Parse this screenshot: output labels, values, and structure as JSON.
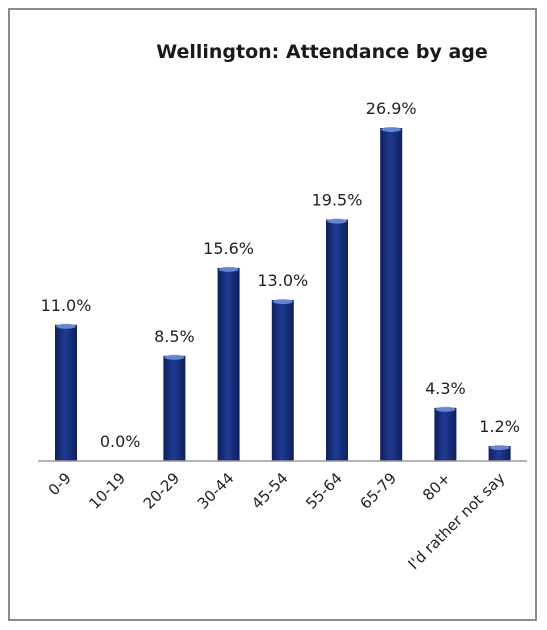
{
  "chart_data": {
    "type": "bar",
    "title": "Wellington: Attendance by age",
    "xlabel": "",
    "ylabel": "",
    "categories": [
      "0-9",
      "10-19",
      "20-29",
      "30-44",
      "45-54",
      "55-64",
      "65-79",
      "80+",
      "I'd rather not say"
    ],
    "values": [
      11.0,
      0.0,
      8.5,
      15.6,
      13.0,
      19.5,
      26.9,
      4.3,
      1.2
    ],
    "data_labels": [
      "11.0%",
      "0.0%",
      "8.5%",
      "15.6%",
      "13.0%",
      "19.5%",
      "26.9%",
      "4.3%",
      "1.2%"
    ],
    "ylim": [
      0,
      26.9
    ],
    "grid": false,
    "legend": "none",
    "bar_color": "#1f3a93",
    "bar_color_dark": "#0f1f5c",
    "bar_color_light": "#6d8fd8"
  }
}
